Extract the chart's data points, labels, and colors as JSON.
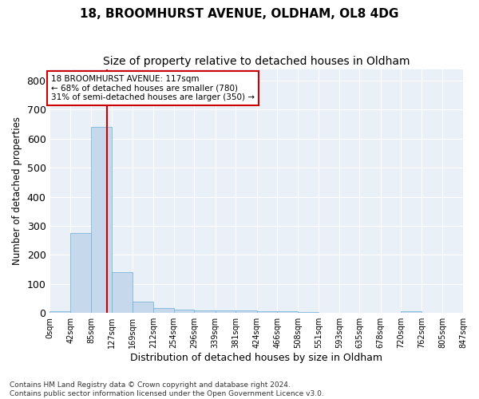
{
  "title": "18, BROOMHURST AVENUE, OLDHAM, OL8 4DG",
  "subtitle": "Size of property relative to detached houses in Oldham",
  "xlabel": "Distribution of detached houses by size in Oldham",
  "ylabel": "Number of detached properties",
  "footnote1": "Contains HM Land Registry data © Crown copyright and database right 2024.",
  "footnote2": "Contains public sector information licensed under the Open Government Licence v3.0.",
  "property_size": 117,
  "property_label": "18 BROOMHURST AVENUE: 117sqm",
  "annotation_line1": "← 68% of detached houses are smaller (780)",
  "annotation_line2": "31% of semi-detached houses are larger (350) →",
  "bar_edges": [
    0,
    42,
    85,
    127,
    169,
    212,
    254,
    296,
    339,
    381,
    424,
    466,
    508,
    551,
    593,
    635,
    678,
    720,
    762,
    805,
    847
  ],
  "bar_values": [
    5,
    275,
    640,
    140,
    38,
    18,
    12,
    8,
    8,
    8,
    6,
    5,
    2,
    0,
    0,
    0,
    0,
    5,
    0,
    0
  ],
  "bar_color": "#c6d9ec",
  "bar_edge_color": "#6aaed6",
  "vline_color": "#cc0000",
  "vline_x": 117,
  "ylim": [
    0,
    840
  ],
  "yticks": [
    0,
    100,
    200,
    300,
    400,
    500,
    600,
    700,
    800
  ],
  "background_color": "#eaf0f8",
  "grid_color": "#ffffff",
  "title_fontsize": 11,
  "subtitle_fontsize": 10,
  "annotation_box_color": "#cc0000",
  "tick_label_fontsize": 7,
  "fig_background": "#ffffff"
}
